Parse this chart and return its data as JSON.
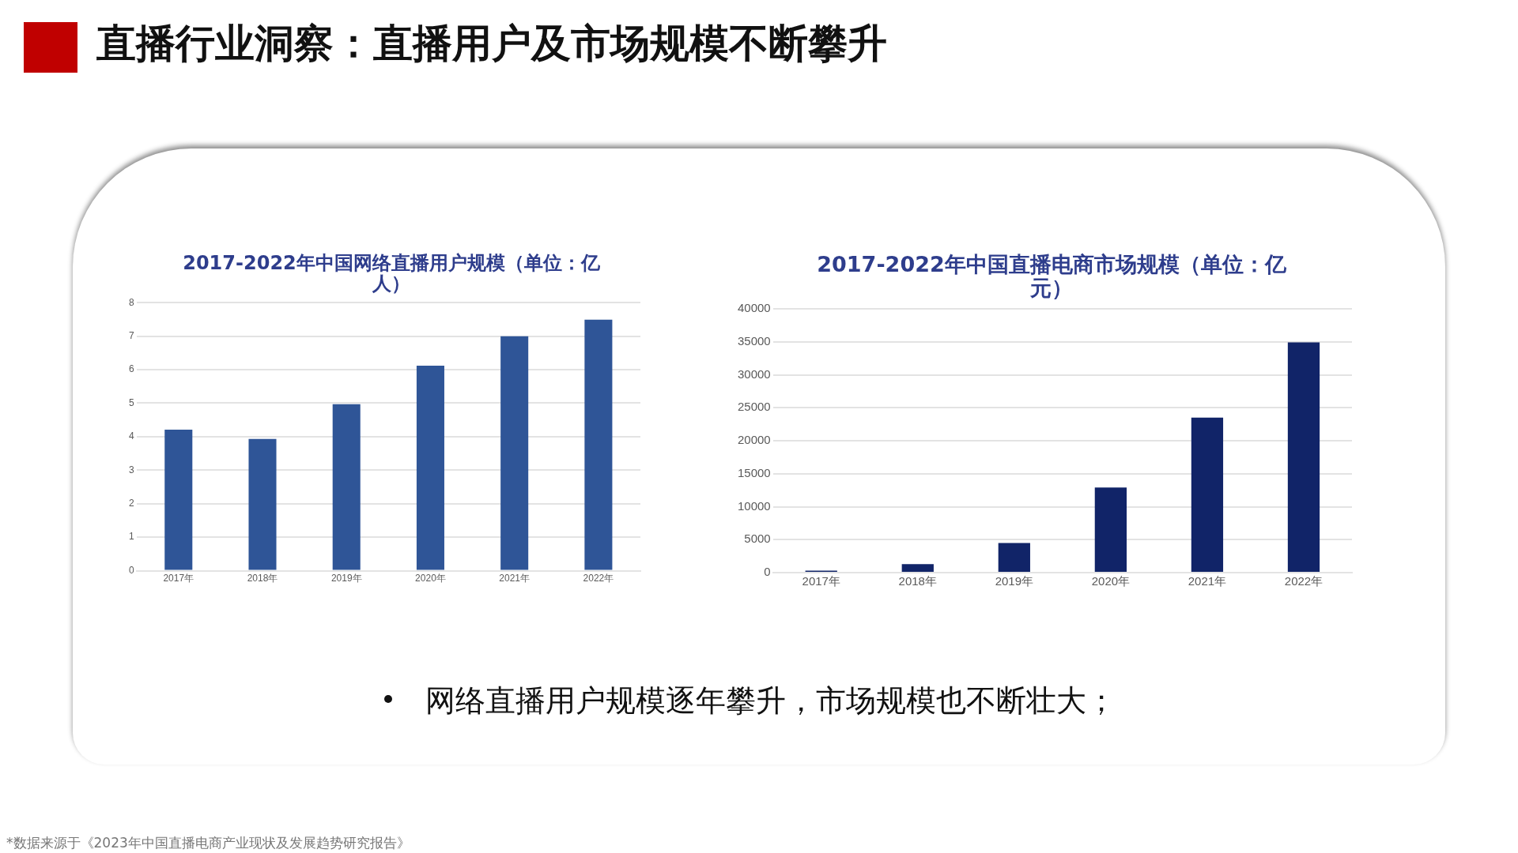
{
  "chart_data": [
    {
      "type": "other",
      "title": "直播行业洞察：直播用户及市场规模不断攀升",
      "annotations": [
        "网络直播用户规模逐年攀升，市场规模也不断壮大；",
        "*数据来源于《2023年中国直播电商产业现状及发展趋势研究报告》"
      ]
    },
    {
      "type": "bar",
      "title": "2017-2022年中国网络直播用户规模（单位：亿人）",
      "categories": [
        "2017年",
        "2018年",
        "2019年",
        "2020年",
        "2021年",
        "2022年"
      ],
      "values": [
        4.21,
        3.93,
        4.97,
        6.12,
        7.0,
        7.49
      ],
      "color": "#2f5597",
      "ylim": [
        0,
        8
      ],
      "yticks": [
        0,
        1,
        2,
        3,
        4,
        5,
        6,
        7,
        8
      ],
      "grid": "y"
    },
    {
      "type": "bar",
      "title": "2017-2022年中国直播电商市场规模（单位：亿元）",
      "categories": [
        "2017年",
        "2018年",
        "2019年",
        "2020年",
        "2021年",
        "2022年"
      ],
      "values": [
        300,
        1300,
        4500,
        12900,
        23500,
        34900
      ],
      "color": "#112468",
      "ylim": [
        0,
        40000
      ],
      "yticks": [
        0,
        5000,
        10000,
        15000,
        20000,
        25000,
        30000,
        35000,
        40000
      ],
      "grid": "y"
    }
  ]
}
